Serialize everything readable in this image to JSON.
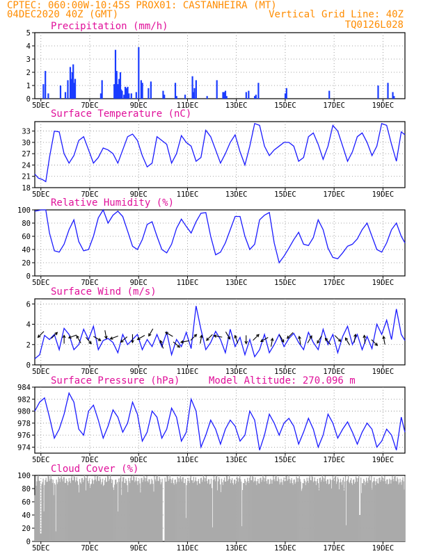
{
  "header": {
    "line1": "CPTEC:  060:00W-10:45S  PROX01: CASTANHEIRA (MT)",
    "line2_left": "04DEC2020 40Z (GMT)",
    "line2_right": "Vertical Grid Line: 40Z",
    "line3_right": "TQ0126L028"
  },
  "colors": {
    "line": "#1a1aff",
    "bar": "#1a3cff",
    "cloud": "#aaaaaa",
    "title": "#e0109a",
    "header": "#ff8c00"
  },
  "chart_data": [
    {
      "type": "bar",
      "title": "Precipitation (mm/h)",
      "x_unit": "days since 04DEC 00Z",
      "xlim": [
        3.75,
        18.9
      ],
      "xticks": [
        {
          "x": 4,
          "label": "5DEC"
        },
        {
          "x": 6,
          "label": "7DEC"
        },
        {
          "x": 8,
          "label": "9DEC"
        },
        {
          "x": 10,
          "label": "11DEC"
        },
        {
          "x": 12,
          "label": "13DEC"
        },
        {
          "x": 14,
          "label": "15DEC"
        },
        {
          "x": 16,
          "label": "17DEC"
        },
        {
          "x": 18,
          "label": "19DEC"
        }
      ],
      "ylim": [
        0,
        5
      ],
      "yticks": [
        0,
        1,
        2,
        3,
        4,
        5
      ],
      "x": [
        4.1,
        4.18,
        4.3,
        4.8,
        5.0,
        5.1,
        5.2,
        5.25,
        5.28,
        5.32,
        5.36,
        5.4,
        6.45,
        6.5,
        7.0,
        7.05,
        7.08,
        7.1,
        7.15,
        7.2,
        7.25,
        7.28,
        7.32,
        7.4,
        7.45,
        7.5,
        7.55,
        7.6,
        7.7,
        7.9,
        8.0,
        8.1,
        8.15,
        8.4,
        8.5,
        9.0,
        9.05,
        9.5,
        9.55,
        9.9,
        10.2,
        10.25,
        10.28,
        10.35,
        10.8,
        11.2,
        11.45,
        11.5,
        11.55,
        11.6,
        12.4,
        12.5,
        12.75,
        12.8,
        12.9,
        14.0,
        14.05,
        15.8,
        17.8,
        18.2,
        18.4,
        18.45
      ],
      "values": [
        1.1,
        2.1,
        0.4,
        1.0,
        0.5,
        1.4,
        2.4,
        1.5,
        2.0,
        2.6,
        1.2,
        1.5,
        0.4,
        1.4,
        1.1,
        3.7,
        0.9,
        2.1,
        1.1,
        1.5,
        2.0,
        0.7,
        0.6,
        0.3,
        0.9,
        0.8,
        0.9,
        0.4,
        0.4,
        0.5,
        3.9,
        1.4,
        1.2,
        0.8,
        1.3,
        0.6,
        0.3,
        1.2,
        0.2,
        0.3,
        1.7,
        0.5,
        0.8,
        1.4,
        0.2,
        1.4,
        0.5,
        0.5,
        0.6,
        0.2,
        0.5,
        0.6,
        0.2,
        0.3,
        1.2,
        0.4,
        0.8,
        0.6,
        1.0,
        1.2,
        0.5,
        0.2
      ]
    },
    {
      "type": "line",
      "title": "Surface Temperature (nC)",
      "xlim": [
        3.75,
        18.9
      ],
      "ylim": [
        18,
        35.5
      ],
      "yticks": [
        18,
        21,
        24,
        27,
        30,
        33
      ],
      "x": [
        3.75,
        3.9,
        4.05,
        4.2,
        4.35,
        4.55,
        4.75,
        4.95,
        5.15,
        5.35,
        5.55,
        5.75,
        5.95,
        6.15,
        6.35,
        6.55,
        6.75,
        6.95,
        7.15,
        7.35,
        7.55,
        7.75,
        7.95,
        8.15,
        8.35,
        8.55,
        8.75,
        8.95,
        9.15,
        9.35,
        9.55,
        9.75,
        9.95,
        10.15,
        10.35,
        10.55,
        10.75,
        10.95,
        11.15,
        11.35,
        11.55,
        11.75,
        11.95,
        12.15,
        12.35,
        12.55,
        12.75,
        12.95,
        13.15,
        13.35,
        13.55,
        13.75,
        13.95,
        14.15,
        14.35,
        14.55,
        14.75,
        14.95,
        15.15,
        15.35,
        15.55,
        15.75,
        15.95,
        16.15,
        16.35,
        16.55,
        16.75,
        16.95,
        17.15,
        17.35,
        17.55,
        17.75,
        17.95,
        18.15,
        18.35,
        18.55,
        18.75,
        18.9
      ],
      "values": [
        21.6,
        20.5,
        20.2,
        19.6,
        26.0,
        33.0,
        32.8,
        27.0,
        24.5,
        26.5,
        30.5,
        31.5,
        28.0,
        24.5,
        26.0,
        28.5,
        28.0,
        27.0,
        24.5,
        28.0,
        31.5,
        32.2,
        30.5,
        26.5,
        23.5,
        24.5,
        31.5,
        30.5,
        29.5,
        24.5,
        27.0,
        31.8,
        30.0,
        29.0,
        25.0,
        26.0,
        33.2,
        31.5,
        28.0,
        24.5,
        27.0,
        30.0,
        32.0,
        27.5,
        24.0,
        29.0,
        35.0,
        34.5,
        29.0,
        26.5,
        28.0,
        29.0,
        30.0,
        30.0,
        29.0,
        25.0,
        26.0,
        31.5,
        32.5,
        29.5,
        25.5,
        29.0,
        34.5,
        33.0,
        29.0,
        25.0,
        27.5,
        31.5,
        32.5,
        30.0,
        26.5,
        29.0,
        35.0,
        34.5,
        29.5,
        25.0,
        32.8,
        32.0
      ]
    },
    {
      "type": "line",
      "title": "Relative Humidity (%)",
      "xlim": [
        3.75,
        18.9
      ],
      "ylim": [
        0,
        100
      ],
      "yticks": [
        0,
        20,
        40,
        60,
        80,
        100
      ],
      "x": [
        3.75,
        3.9,
        4.0,
        4.2,
        4.35,
        4.55,
        4.75,
        4.95,
        5.15,
        5.35,
        5.55,
        5.75,
        5.95,
        6.15,
        6.35,
        6.55,
        6.75,
        6.95,
        7.15,
        7.35,
        7.55,
        7.75,
        7.95,
        8.15,
        8.35,
        8.55,
        8.75,
        8.95,
        9.15,
        9.35,
        9.55,
        9.75,
        9.95,
        10.15,
        10.35,
        10.55,
        10.75,
        10.95,
        11.15,
        11.35,
        11.55,
        11.75,
        11.95,
        12.15,
        12.35,
        12.55,
        12.75,
        12.95,
        13.15,
        13.35,
        13.55,
        13.75,
        13.95,
        14.15,
        14.35,
        14.55,
        14.75,
        14.95,
        15.15,
        15.35,
        15.55,
        15.75,
        15.95,
        16.15,
        16.35,
        16.55,
        16.75,
        16.95,
        17.15,
        17.35,
        17.55,
        17.75,
        17.95,
        18.15,
        18.35,
        18.55,
        18.75,
        18.9
      ],
      "values": [
        98,
        99,
        100,
        100,
        65,
        38,
        36,
        48,
        70,
        85,
        52,
        38,
        40,
        60,
        88,
        100,
        80,
        92,
        98,
        90,
        68,
        45,
        40,
        55,
        78,
        82,
        60,
        40,
        35,
        48,
        72,
        86,
        75,
        65,
        82,
        95,
        96,
        60,
        32,
        36,
        50,
        70,
        90,
        90,
        60,
        40,
        48,
        85,
        92,
        96,
        50,
        20,
        30,
        42,
        55,
        66,
        48,
        46,
        58,
        85,
        70,
        42,
        28,
        26,
        35,
        45,
        48,
        56,
        70,
        80,
        60,
        40,
        36,
        50,
        70,
        80,
        60,
        50
      ]
    },
    {
      "type": "line",
      "title": "Surface Wind (m/s)",
      "xlim": [
        3.75,
        18.9
      ],
      "ylim": [
        0,
        6.5
      ],
      "yticks": [
        0,
        2,
        4,
        6
      ],
      "x": [
        3.75,
        3.95,
        4.15,
        4.35,
        4.55,
        4.75,
        4.95,
        5.15,
        5.35,
        5.55,
        5.75,
        5.95,
        6.15,
        6.35,
        6.55,
        6.75,
        6.95,
        7.15,
        7.35,
        7.55,
        7.75,
        7.95,
        8.15,
        8.35,
        8.55,
        8.75,
        8.95,
        9.15,
        9.35,
        9.55,
        9.75,
        9.95,
        10.15,
        10.35,
        10.55,
        10.75,
        10.95,
        11.15,
        11.35,
        11.55,
        11.75,
        11.95,
        12.15,
        12.35,
        12.55,
        12.75,
        12.95,
        13.15,
        13.35,
        13.55,
        13.75,
        13.95,
        14.15,
        14.35,
        14.55,
        14.75,
        14.95,
        15.15,
        15.35,
        15.55,
        15.75,
        15.95,
        16.15,
        16.35,
        16.55,
        16.75,
        16.95,
        17.15,
        17.35,
        17.55,
        17.75,
        17.95,
        18.15,
        18.35,
        18.55,
        18.75,
        18.9
      ],
      "values": [
        0.6,
        1.0,
        2.9,
        2.5,
        3.0,
        1.5,
        3.6,
        3.0,
        1.5,
        2.0,
        3.5,
        2.5,
        3.8,
        1.5,
        2.4,
        2.6,
        2.2,
        1.2,
        3.0,
        2.0,
        2.5,
        3.0,
        1.5,
        2.5,
        1.8,
        3.0,
        1.8,
        3.2,
        1.0,
        2.5,
        1.8,
        3.2,
        1.6,
        5.8,
        3.5,
        1.5,
        2.2,
        3.3,
        2.5,
        1.2,
        3.5,
        1.8,
        2.7,
        1.0,
        2.5,
        0.8,
        1.5,
        3.0,
        1.2,
        2.0,
        3.0,
        1.8,
        2.6,
        3.1,
        2.2,
        1.5,
        3.2,
        2.2,
        1.5,
        3.5,
        2.0,
        3.0,
        1.2,
        2.8,
        3.8,
        2.0,
        3.0,
        1.5,
        2.8,
        1.6,
        4.0,
        3.0,
        4.4,
        2.5,
        5.5,
        3.0,
        2.4
      ],
      "arrows": [
        {
          "x": 4.0,
          "y": 3.0,
          "dir": -135
        },
        {
          "x": 4.55,
          "y": 2.9,
          "dir": 45
        },
        {
          "x": 4.95,
          "y": 2.5,
          "dir": 90
        },
        {
          "x": 5.3,
          "y": 2.8,
          "dir": -160
        },
        {
          "x": 5.55,
          "y": 2.5,
          "dir": 120
        },
        {
          "x": 5.95,
          "y": 2.4,
          "dir": -50
        },
        {
          "x": 6.3,
          "y": 2.6,
          "dir": -30
        },
        {
          "x": 6.65,
          "y": 3.0,
          "dir": -80
        },
        {
          "x": 7.0,
          "y": 2.7,
          "dir": -160
        },
        {
          "x": 7.4,
          "y": 2.5,
          "dir": -140
        },
        {
          "x": 7.75,
          "y": 2.6,
          "dir": -90
        },
        {
          "x": 8.1,
          "y": 2.7,
          "dir": -150
        },
        {
          "x": 8.5,
          "y": 3.2,
          "dir": -120
        },
        {
          "x": 8.95,
          "y": 2.0,
          "dir": 110
        },
        {
          "x": 9.25,
          "y": 3.0,
          "dir": 150
        },
        {
          "x": 9.55,
          "y": 2.0,
          "dir": -40
        },
        {
          "x": 9.9,
          "y": 2.3,
          "dir": -170
        },
        {
          "x": 10.25,
          "y": 2.7,
          "dir": 45
        },
        {
          "x": 10.55,
          "y": 2.5,
          "dir": 80
        },
        {
          "x": 10.9,
          "y": 2.7,
          "dir": -135
        },
        {
          "x": 11.25,
          "y": 2.8,
          "dir": 170
        },
        {
          "x": 11.65,
          "y": 2.9,
          "dir": -60
        },
        {
          "x": 12.0,
          "y": 2.5,
          "dir": 110
        },
        {
          "x": 12.4,
          "y": 2.5,
          "dir": -90
        },
        {
          "x": 12.8,
          "y": 2.7,
          "dir": 45
        },
        {
          "x": 13.15,
          "y": 2.5,
          "dir": -150
        },
        {
          "x": 13.45,
          "y": 2.2,
          "dir": 80
        },
        {
          "x": 13.85,
          "y": 2.6,
          "dir": -60
        },
        {
          "x": 14.2,
          "y": 2.9,
          "dir": -135
        },
        {
          "x": 14.6,
          "y": 2.4,
          "dir": 100
        },
        {
          "x": 15.0,
          "y": 2.5,
          "dir": 60
        },
        {
          "x": 15.4,
          "y": 2.5,
          "dir": -120
        },
        {
          "x": 15.75,
          "y": 2.3,
          "dir": 130
        },
        {
          "x": 16.15,
          "y": 2.6,
          "dir": -45
        },
        {
          "x": 16.55,
          "y": 2.3,
          "dir": 120
        },
        {
          "x": 16.85,
          "y": 2.6,
          "dir": 80
        },
        {
          "x": 17.25,
          "y": 2.5,
          "dir": 95
        },
        {
          "x": 17.65,
          "y": 2.2,
          "dir": -45
        },
        {
          "x": 18.05,
          "y": 2.4,
          "dir": 100
        }
      ]
    },
    {
      "type": "line",
      "title": "Surface Pressure (hPa)",
      "annotation": "Model Altitude: 270.096 m",
      "xlim": [
        3.75,
        18.9
      ],
      "ylim": [
        973,
        984
      ],
      "yticks": [
        974,
        976,
        978,
        980,
        982,
        984
      ],
      "x": [
        3.75,
        3.95,
        4.15,
        4.35,
        4.55,
        4.75,
        4.95,
        5.15,
        5.35,
        5.55,
        5.75,
        5.95,
        6.15,
        6.35,
        6.55,
        6.75,
        6.95,
        7.15,
        7.35,
        7.55,
        7.75,
        7.95,
        8.15,
        8.35,
        8.55,
        8.75,
        8.95,
        9.15,
        9.35,
        9.55,
        9.75,
        9.95,
        10.15,
        10.35,
        10.55,
        10.75,
        10.95,
        11.15,
        11.35,
        11.55,
        11.75,
        11.95,
        12.15,
        12.35,
        12.55,
        12.75,
        12.95,
        13.15,
        13.35,
        13.55,
        13.75,
        13.95,
        14.15,
        14.35,
        14.55,
        14.75,
        14.95,
        15.15,
        15.35,
        15.55,
        15.75,
        15.95,
        16.15,
        16.35,
        16.55,
        16.75,
        16.95,
        17.15,
        17.35,
        17.55,
        17.75,
        17.95,
        18.15,
        18.35,
        18.55,
        18.75,
        18.9
      ],
      "values": [
        980.0,
        981.5,
        982.2,
        979.0,
        975.5,
        977.0,
        979.5,
        983.0,
        981.5,
        977.0,
        976.0,
        980.0,
        981.0,
        978.5,
        975.5,
        977.5,
        980.2,
        979.0,
        976.5,
        978.0,
        981.5,
        979.5,
        975.0,
        976.5,
        980.0,
        979.0,
        975.5,
        977.0,
        980.5,
        979.0,
        975.0,
        976.5,
        982.0,
        980.0,
        974.0,
        976.0,
        978.5,
        977.0,
        974.5,
        977.0,
        978.5,
        977.5,
        975.0,
        976.0,
        980.0,
        978.5,
        973.5,
        976.0,
        979.5,
        978.0,
        976.0,
        978.0,
        978.8,
        977.5,
        974.5,
        976.5,
        978.8,
        977.0,
        974.0,
        976.0,
        979.5,
        978.0,
        975.5,
        977.0,
        978.2,
        976.5,
        974.5,
        976.5,
        978.0,
        977.0,
        974.0,
        975.0,
        977.0,
        976.0,
        973.5,
        979.0,
        976.5
      ]
    },
    {
      "type": "bar",
      "title": "Cloud Cover (%)",
      "xlim": [
        3.75,
        18.9
      ],
      "ylim": [
        0,
        100
      ],
      "yticks": [
        0,
        20,
        40,
        60,
        80,
        100
      ]
    }
  ]
}
